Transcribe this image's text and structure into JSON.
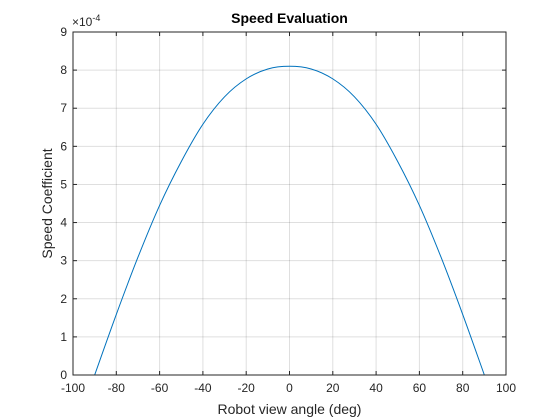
{
  "chart_data": {
    "type": "line",
    "title": "Speed Evaluation",
    "xlabel": "Robot view angle (deg)",
    "ylabel": "Speed Coefficient",
    "xlim": [
      -100,
      100
    ],
    "ylim": [
      0,
      9
    ],
    "y_exponent_label": "×10",
    "y_exponent_power": "-4",
    "xticks": [
      "-100",
      "-80",
      "-60",
      "-40",
      "-20",
      "0",
      "20",
      "40",
      "60",
      "80",
      "100"
    ],
    "yticks": [
      "0",
      "1",
      "2",
      "3",
      "4",
      "5",
      "6",
      "7",
      "8",
      "9"
    ],
    "grid": true,
    "series": [
      {
        "color": "#0072bd",
        "x": [
          -90,
          -80,
          -70,
          -60,
          -50,
          -40,
          -30,
          -20,
          -10,
          0,
          10,
          20,
          30,
          40,
          50,
          60,
          70,
          80,
          90
        ],
        "y": [
          0,
          1.59,
          3.09,
          4.45,
          5.6,
          6.58,
          7.3,
          7.77,
          8.03,
          8.1,
          8.03,
          7.77,
          7.3,
          6.58,
          5.6,
          4.45,
          3.09,
          1.59,
          0
        ]
      }
    ]
  }
}
